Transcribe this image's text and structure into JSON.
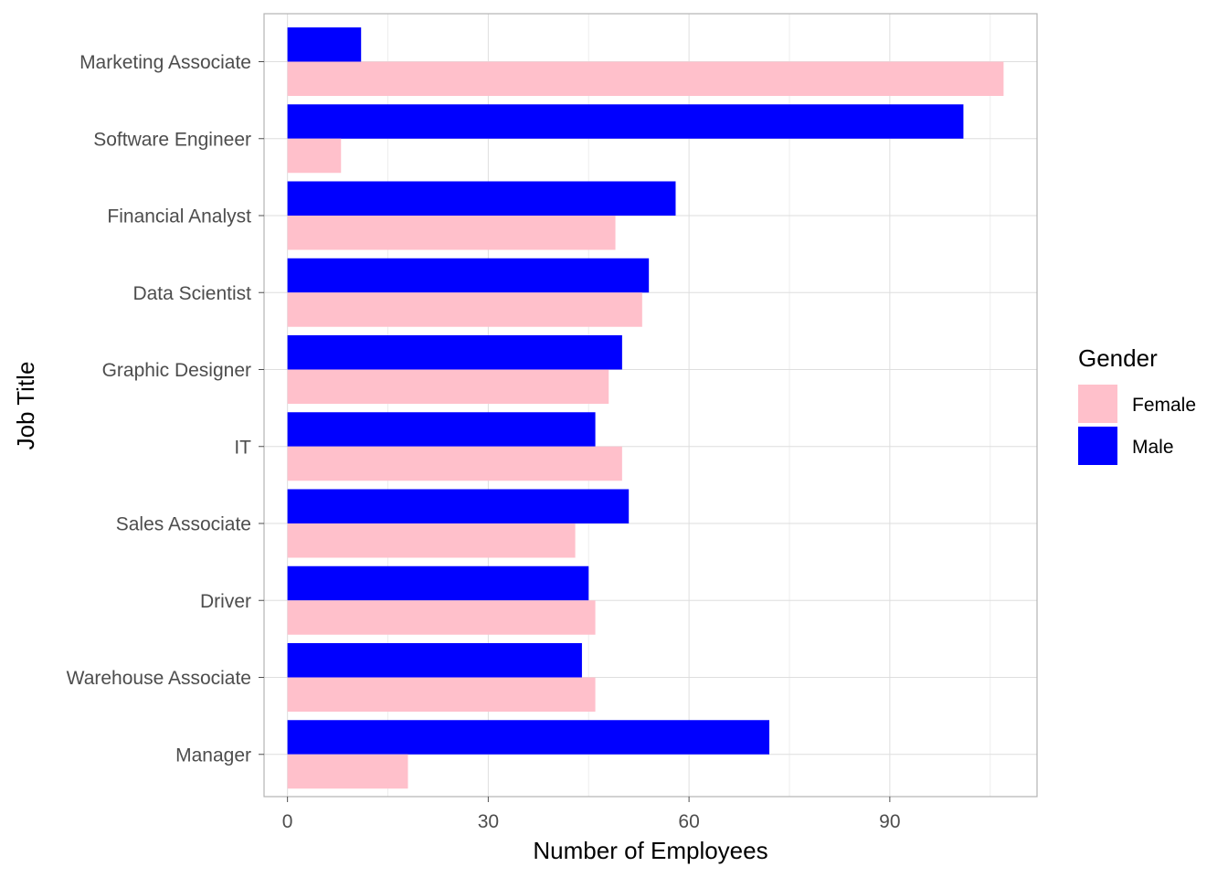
{
  "chart_data": {
    "type": "bar",
    "orientation": "horizontal",
    "title": "",
    "xlabel": "Number of Employees",
    "ylabel": "Job Title",
    "xlim": [
      -3.5,
      112
    ],
    "xticks": [
      0,
      30,
      60,
      90
    ],
    "x_minor_ticks": [
      15,
      45,
      75,
      105
    ],
    "grid": true,
    "categories": [
      "Marketing Associate",
      "Software Engineer",
      "Financial Analyst",
      "Data Scientist",
      "Graphic Designer",
      "IT",
      "Sales Associate",
      "Driver",
      "Warehouse Associate",
      "Manager"
    ],
    "series": [
      {
        "name": "Female",
        "color": "#ffc0cb",
        "values": [
          107,
          8,
          49,
          53,
          48,
          50,
          43,
          46,
          46,
          18
        ]
      },
      {
        "name": "Male",
        "color": "#0000ff",
        "values": [
          11,
          101,
          58,
          54,
          50,
          46,
          51,
          45,
          44,
          72
        ]
      }
    ],
    "legend": {
      "title": "Gender",
      "position": "right",
      "entries": [
        "Female",
        "Male"
      ]
    }
  }
}
